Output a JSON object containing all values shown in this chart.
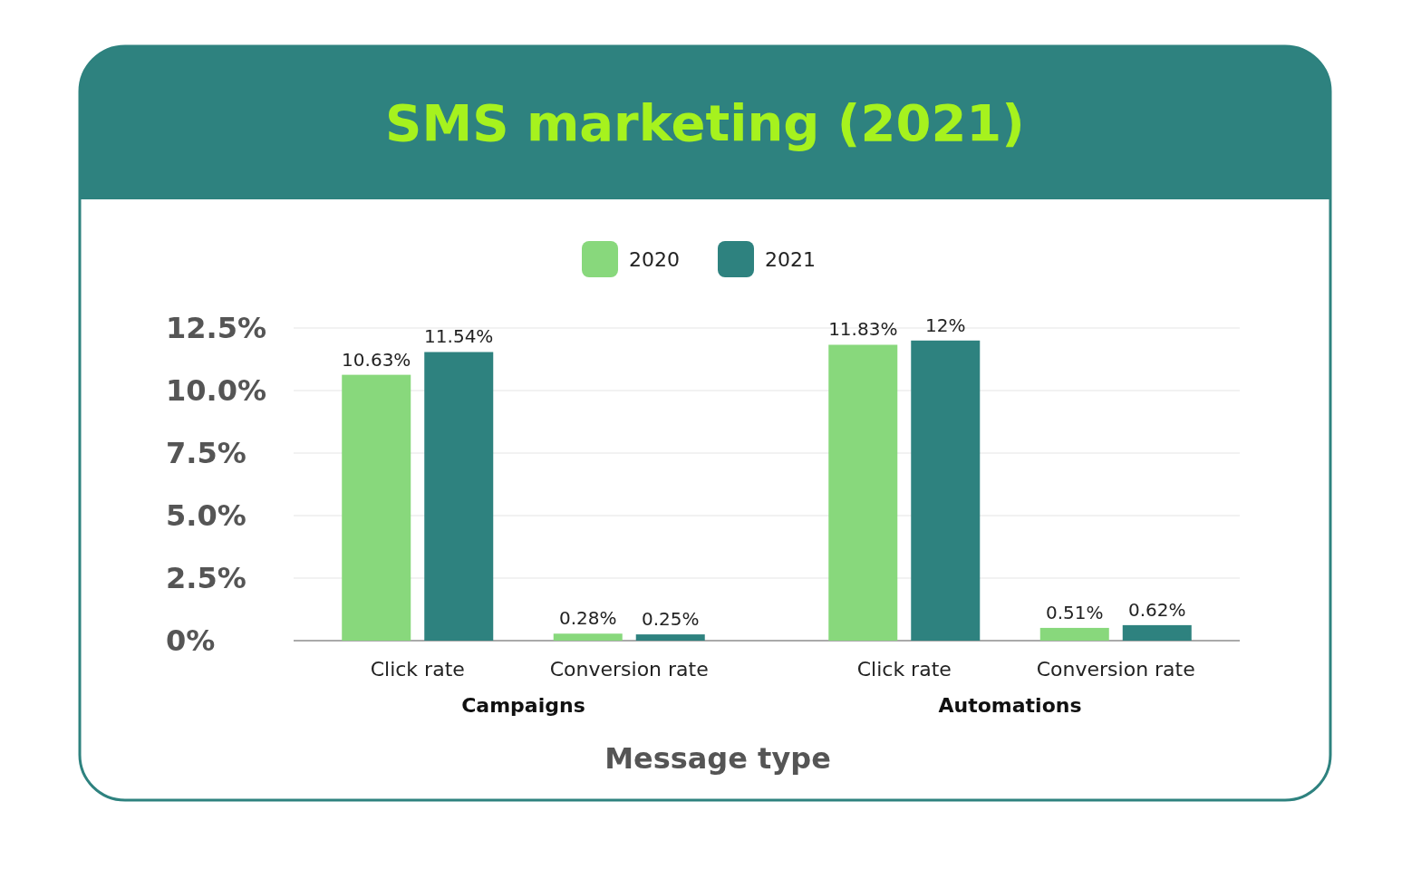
{
  "chart_data": {
    "type": "bar",
    "title": "SMS marketing (2021)",
    "xlabel": "Message type",
    "categories": [
      "Click rate",
      "Conversion rate",
      "Click rate",
      "Conversion rate"
    ],
    "series": [
      {
        "name": "2020",
        "color": "#88d87c",
        "values": [
          10.63,
          0.28,
          11.83,
          0.51
        ],
        "value_labels": [
          "10.63%",
          "0.28%",
          "11.83%",
          "0.51%"
        ]
      },
      {
        "name": "2021",
        "color": "#2e827f",
        "values": [
          11.54,
          0.25,
          12,
          0.62
        ],
        "value_labels": [
          "11.54%",
          "0.25%",
          "12%",
          "0.62%"
        ]
      }
    ],
    "annotations": [
      "Campaigns",
      "Automations"
    ],
    "ylim": [
      0,
      12.5
    ],
    "yticks": [
      {
        "value": 0,
        "label": "0%"
      },
      {
        "value": 2.5,
        "label": "2.5%"
      },
      {
        "value": 5,
        "label": "5.0%"
      },
      {
        "value": 7.5,
        "label": "7.5%"
      },
      {
        "value": 10,
        "label": "10.0%"
      },
      {
        "value": 12.5,
        "label": "12.5%"
      }
    ],
    "grid": "y",
    "legend": "top"
  }
}
